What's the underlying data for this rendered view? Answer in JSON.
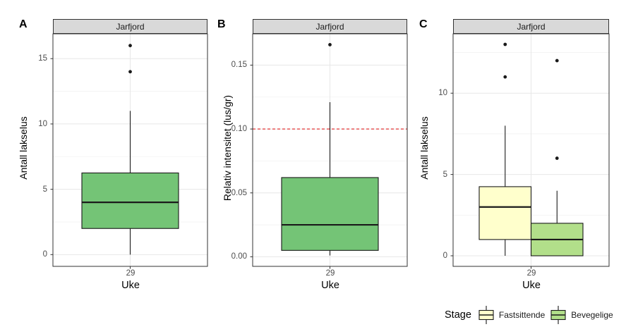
{
  "figure": {
    "background": "#ffffff"
  },
  "colors": {
    "strip_fill": "#d9d9d9",
    "panel_border": "#333333",
    "grid_major": "#e7e7e7",
    "grid_minor": "#f2f2f2",
    "box_stroke": "#1a1a1a",
    "tick_mark": "#333333",
    "tick_text": "#4d4d4d",
    "outlier": "#1a1a1a"
  },
  "chart_data": [
    {
      "type": "boxplot",
      "panel_label": "A",
      "facet_title": "Jarfjord",
      "xlabel": "Uke",
      "ylabel": "Antall lakselus",
      "x_tick": "29",
      "y_ticks": [
        0,
        5,
        10,
        15
      ],
      "y_tick_labels": [
        "0",
        "5",
        "10",
        "15"
      ],
      "ylim": [
        -0.9,
        16.9
      ],
      "grid": true,
      "boxes": [
        {
          "fill": "#74c476",
          "q1": 2,
          "median": 4,
          "q3": 6.25,
          "whisker_low": 0,
          "whisker_high": 11,
          "outliers": [
            14,
            16
          ]
        }
      ]
    },
    {
      "type": "boxplot",
      "panel_label": "B",
      "facet_title": "Jarfjord",
      "xlabel": "Uke",
      "ylabel": "Relativ intensitet (lus/gr)",
      "x_tick": "29",
      "y_ticks": [
        0,
        0.05,
        0.1,
        0.15
      ],
      "y_tick_labels": [
        "0.00",
        "0.05",
        "0.10",
        "0.15"
      ],
      "ylim": [
        -0.0075,
        0.1745
      ],
      "grid": true,
      "ref_line": {
        "y": 0.1,
        "color": "#e02020",
        "style": "dashed"
      },
      "boxes": [
        {
          "fill": "#74c476",
          "q1": 0.005,
          "median": 0.025,
          "q3": 0.062,
          "whisker_low": 0.001,
          "whisker_high": 0.121,
          "outliers": [
            0.166
          ]
        }
      ]
    },
    {
      "type": "boxplot",
      "panel_label": "C",
      "facet_title": "Jarfjord",
      "xlabel": "Uke",
      "ylabel": "Antall lakselus",
      "x_tick": "29",
      "y_ticks": [
        0,
        5,
        10
      ],
      "y_tick_labels": [
        "0",
        "5",
        "10"
      ],
      "ylim": [
        -0.65,
        13.65
      ],
      "grid": true,
      "boxes": [
        {
          "group": "Fastsittende",
          "fill": "#ffffcc",
          "q1": 1,
          "median": 3,
          "q3": 4.25,
          "whisker_low": 0,
          "whisker_high": 8,
          "outliers": [
            11,
            13
          ]
        },
        {
          "group": "Bevegelige",
          "fill": "#b2df8a",
          "q1": 0,
          "median": 1,
          "q3": 2,
          "whisker_low": 0,
          "whisker_high": 4,
          "outliers": [
            6,
            12
          ]
        }
      ]
    }
  ],
  "legend": {
    "title": "Stage",
    "position": "bottom-right",
    "items": [
      {
        "label": "Fastsittende",
        "fill": "#ffffcc"
      },
      {
        "label": "Bevegelige",
        "fill": "#b2df8a"
      }
    ]
  }
}
